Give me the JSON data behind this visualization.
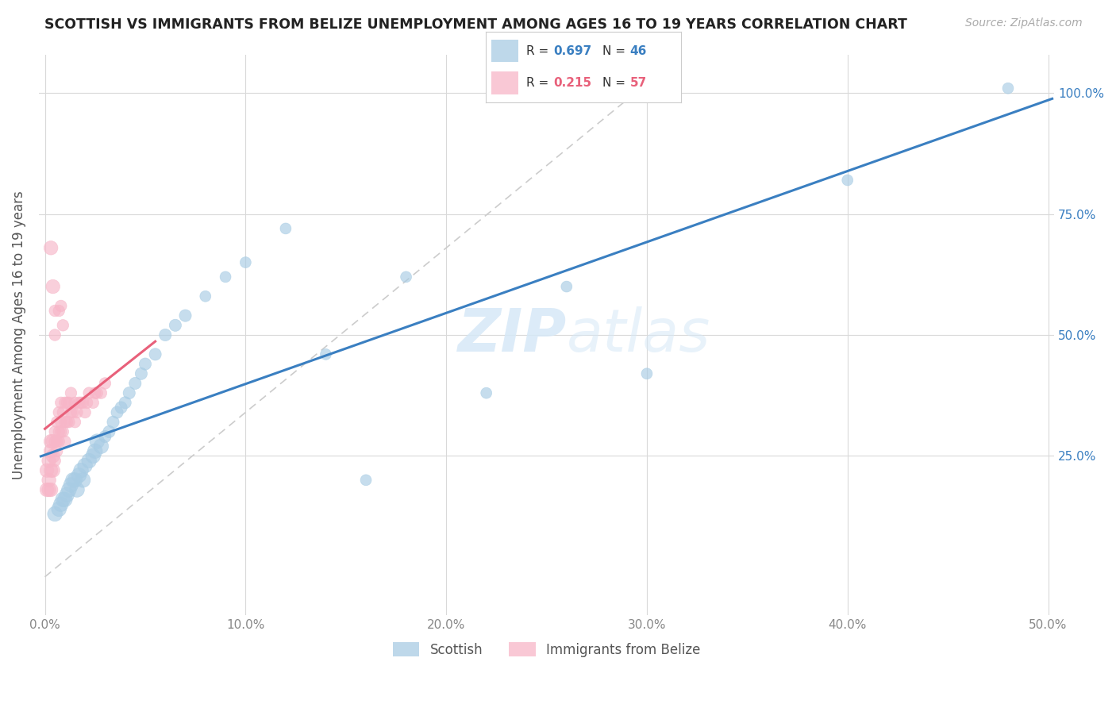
{
  "title": "SCOTTISH VS IMMIGRANTS FROM BELIZE UNEMPLOYMENT AMONG AGES 16 TO 19 YEARS CORRELATION CHART",
  "source": "Source: ZipAtlas.com",
  "ylabel": "Unemployment Among Ages 16 to 19 years",
  "legend_label_blue": "Scottish",
  "legend_label_pink": "Immigrants from Belize",
  "R_blue": 0.697,
  "N_blue": 46,
  "R_pink": 0.215,
  "N_pink": 57,
  "blue_scatter_color": "#a8cce4",
  "pink_scatter_color": "#f7b6c8",
  "blue_line_color": "#3a7fc1",
  "pink_line_color": "#e8607a",
  "blue_text_color": "#3a7fc1",
  "pink_text_color": "#e8607a",
  "grid_color": "#d9d9d9",
  "diag_color": "#cccccc",
  "watermark_color": "#d6e8f7",
  "background_color": "#ffffff",
  "blue_x": [
    0.005,
    0.007,
    0.008,
    0.009,
    0.01,
    0.011,
    0.012,
    0.013,
    0.014,
    0.015,
    0.016,
    0.017,
    0.018,
    0.019,
    0.02,
    0.022,
    0.024,
    0.025,
    0.026,
    0.028,
    0.03,
    0.032,
    0.034,
    0.036,
    0.038,
    0.04,
    0.042,
    0.045,
    0.048,
    0.05,
    0.055,
    0.06,
    0.065,
    0.07,
    0.08,
    0.09,
    0.1,
    0.12,
    0.14,
    0.16,
    0.18,
    0.22,
    0.26,
    0.3,
    0.4,
    0.48
  ],
  "blue_y": [
    0.13,
    0.14,
    0.15,
    0.16,
    0.16,
    0.17,
    0.18,
    0.19,
    0.2,
    0.2,
    0.18,
    0.21,
    0.22,
    0.2,
    0.23,
    0.24,
    0.25,
    0.26,
    0.28,
    0.27,
    0.29,
    0.3,
    0.32,
    0.34,
    0.35,
    0.36,
    0.38,
    0.4,
    0.42,
    0.44,
    0.46,
    0.5,
    0.52,
    0.54,
    0.58,
    0.62,
    0.65,
    0.72,
    0.46,
    0.2,
    0.62,
    0.38,
    0.6,
    0.42,
    0.82,
    1.01
  ],
  "pink_x": [
    0.001,
    0.001,
    0.002,
    0.002,
    0.002,
    0.003,
    0.003,
    0.003,
    0.003,
    0.004,
    0.004,
    0.004,
    0.005,
    0.005,
    0.005,
    0.006,
    0.006,
    0.006,
    0.007,
    0.007,
    0.007,
    0.008,
    0.008,
    0.008,
    0.009,
    0.009,
    0.01,
    0.01,
    0.01,
    0.011,
    0.011,
    0.012,
    0.012,
    0.013,
    0.013,
    0.014,
    0.015,
    0.015,
    0.016,
    0.017,
    0.018,
    0.019,
    0.02,
    0.021,
    0.022,
    0.024,
    0.025,
    0.026,
    0.028,
    0.03,
    0.003,
    0.004,
    0.005,
    0.005,
    0.007,
    0.008,
    0.009
  ],
  "pink_y": [
    0.18,
    0.22,
    0.18,
    0.2,
    0.24,
    0.18,
    0.22,
    0.26,
    0.28,
    0.22,
    0.25,
    0.28,
    0.24,
    0.28,
    0.3,
    0.26,
    0.28,
    0.32,
    0.28,
    0.3,
    0.34,
    0.3,
    0.32,
    0.36,
    0.3,
    0.34,
    0.28,
    0.32,
    0.36,
    0.32,
    0.36,
    0.32,
    0.36,
    0.34,
    0.38,
    0.34,
    0.32,
    0.36,
    0.34,
    0.36,
    0.36,
    0.36,
    0.34,
    0.36,
    0.38,
    0.36,
    0.38,
    0.38,
    0.38,
    0.4,
    0.68,
    0.6,
    0.55,
    0.5,
    0.55,
    0.56,
    0.52
  ],
  "xlim": [
    0.0,
    0.5
  ],
  "ylim": [
    -0.08,
    1.08
  ]
}
